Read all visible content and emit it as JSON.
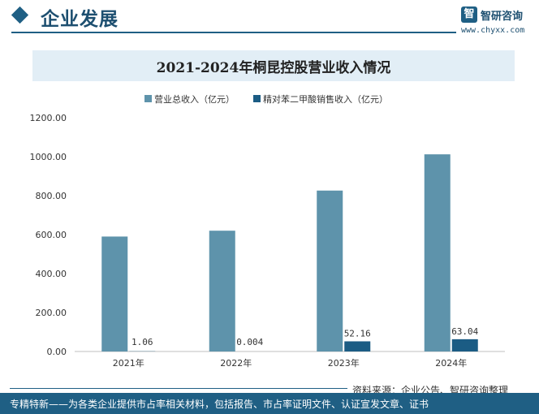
{
  "header": {
    "section_title": "企业发展",
    "logo_mark": "智",
    "logo_name": "智研咨询",
    "logo_url": "www.chyxx.com"
  },
  "chart_data": {
    "type": "bar",
    "title": "2021-2024年桐昆控股营业收入情况",
    "categories": [
      "2021年",
      "2022年",
      "2023年",
      "2024年"
    ],
    "series": [
      {
        "name": "营业总收入（亿元）",
        "values": [
          590,
          620,
          826,
          1012
        ],
        "color": "#5e93ab"
      },
      {
        "name": "精对苯二甲酸销售收入（亿元）",
        "values": [
          1.06,
          0.004,
          52.16,
          63.04
        ],
        "color": "#1b5c84"
      }
    ],
    "data_labels": [
      "1.06",
      "0.004",
      "52.16",
      "63.04"
    ],
    "y_ticks": [
      "0.00",
      "200.00",
      "400.00",
      "600.00",
      "800.00",
      "1000.00",
      "1200.00"
    ],
    "ylim": [
      0,
      1200
    ],
    "xlabel": "",
    "ylabel": "",
    "legend_position": "top-center"
  },
  "footer": {
    "source": "资料来源：企业公告、智研咨询整理",
    "tagline": "专精特新——为各类企业提供市占率相关材料，包括报告、市占率证明文件、认证宣发文章、证书"
  }
}
